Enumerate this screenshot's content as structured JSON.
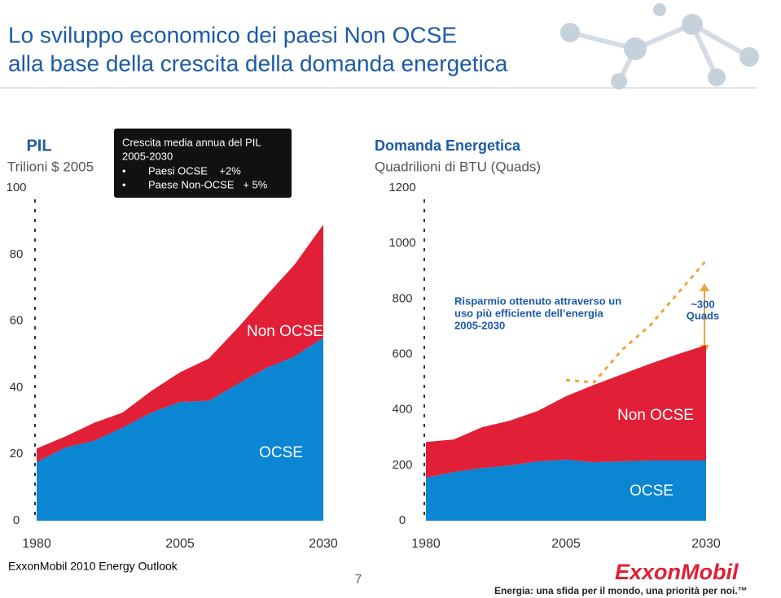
{
  "title_lines": [
    "Lo sviluppo economico dei paesi Non OCSE",
    "alla base della crescita della domanda energetica"
  ],
  "info_box": {
    "lines": [
      "Crescita media annua del PIL",
      "2005-2030"
    ],
    "bullets": [
      "Paesi OCSE    +2%",
      "Paese Non-OCSE   + 5%"
    ]
  },
  "footer": {
    "source": "ExxonMobil 2010 Energy Outlook",
    "page": "7",
    "logo": "ExxonMobil",
    "tagline": "Energia: una sfida per il mondo, una priorità per noi.™"
  },
  "chart_data": [
    {
      "type": "stacked_area",
      "title": "PIL",
      "subtitle": "Trilioni $ 2005",
      "x": [
        1980,
        1985,
        1990,
        1995,
        2000,
        2005,
        2010,
        2015,
        2020,
        2025,
        2030
      ],
      "xlim": [
        1980,
        2030
      ],
      "xticks": [
        1980,
        2005,
        2030
      ],
      "ylim": [
        0,
        100
      ],
      "yticks": [
        0,
        20,
        40,
        60,
        80,
        100
      ],
      "series": [
        {
          "name": "OCSE",
          "color": "#0a86d3",
          "values": [
            17.6,
            22,
            24,
            28,
            32.5,
            35.7,
            36,
            41,
            45.8,
            49.4,
            55
          ]
        },
        {
          "name": "Non OCSE",
          "color": "#e11f36",
          "values": [
            4.1,
            3.3,
            5.4,
            4.5,
            6.5,
            8.9,
            12.7,
            16.8,
            21.7,
            27.6,
            34
          ]
        }
      ]
    },
    {
      "type": "stacked_area",
      "title": "Domanda Energetica",
      "subtitle": "Quadrilioni di BTU (Quads)",
      "x": [
        1980,
        1985,
        1990,
        1995,
        2000,
        2005,
        2010,
        2015,
        2020,
        2025,
        2030
      ],
      "xlim": [
        1980,
        2030
      ],
      "xticks": [
        1980,
        2005,
        2030
      ],
      "ylim": [
        0,
        1200
      ],
      "yticks": [
        0,
        200,
        400,
        600,
        800,
        1000,
        1200
      ],
      "series": [
        {
          "name": "OCSE",
          "color": "#0a86d3",
          "values": [
            155,
            176,
            190,
            199,
            214,
            220,
            211,
            214,
            217,
            217,
            217
          ]
        },
        {
          "name": "Non OCSE",
          "color": "#e11f36",
          "values": [
            129,
            117,
            147,
            162,
            182,
            229,
            279,
            314,
            349,
            384,
            416
          ]
        }
      ],
      "dashed_line": {
        "color": "#f2a33a",
        "x": [
          2005,
          2010,
          2015,
          2020,
          2025,
          2030
        ],
        "values": [
          507,
          499,
          616,
          704,
          821,
          938
        ]
      },
      "annotations": [
        "Risparmio ottenuto attraverso un",
        "uso più efficiente dell’energia",
        "2005-2030"
      ],
      "arrow_label": [
        "~300",
        "Quads"
      ]
    }
  ]
}
